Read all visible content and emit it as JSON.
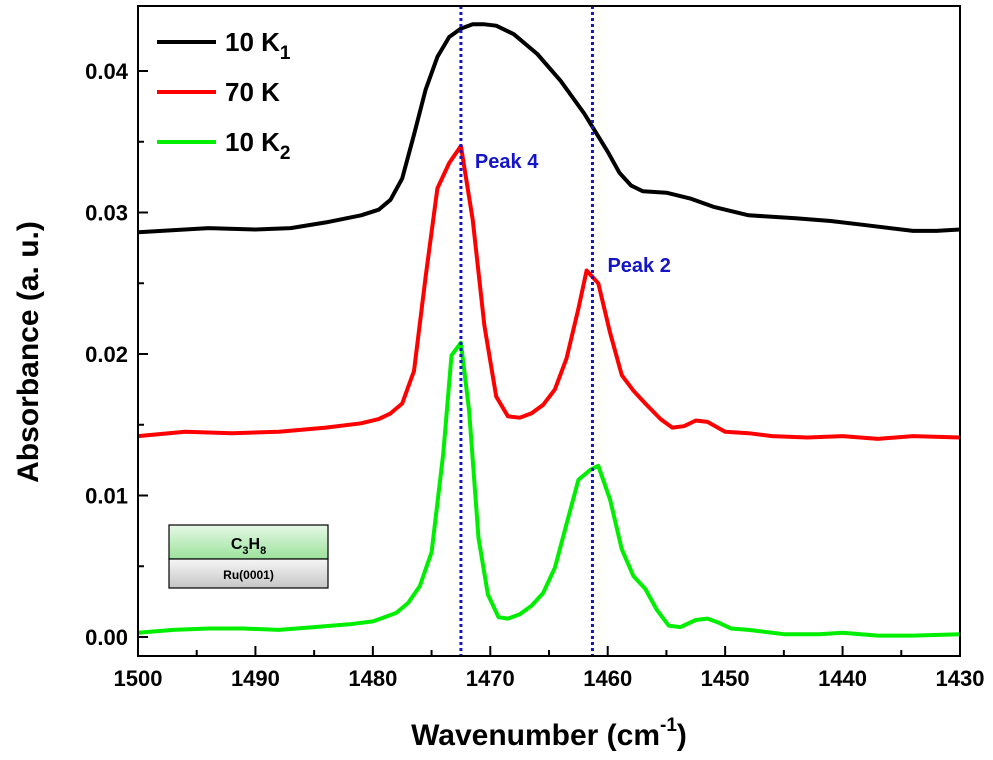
{
  "chart_data": {
    "type": "line",
    "xlabel": "Wavenumber (cm",
    "xlabel_sup": "-1",
    "xlabel_close": ")",
    "ylabel": "Absorbance (a. u.)",
    "xlim": [
      1500,
      1430
    ],
    "ylim": [
      -0.001,
      0.0445
    ],
    "x_ticks": [
      1500,
      1490,
      1480,
      1470,
      1460,
      1450,
      1440,
      1430
    ],
    "y_ticks": [
      0.0,
      0.01,
      0.02,
      0.03,
      0.04
    ],
    "x_tick_labels": [
      "1500",
      "1490",
      "1480",
      "1470",
      "1460",
      "1450",
      "1440",
      "1430"
    ],
    "y_tick_labels": [
      "0.00",
      "0.01",
      "0.02",
      "0.03",
      "0.04"
    ],
    "grid": false,
    "legend_position": "top-left",
    "series": [
      {
        "name": "10 K",
        "name_sub": "1",
        "color": "#000000",
        "x": [
          1500,
          1496,
          1494,
          1490,
          1487,
          1484,
          1481,
          1479.5,
          1478.5,
          1477.5,
          1476.5,
          1475.5,
          1474.5,
          1473.5,
          1472.5,
          1471.5,
          1470.5,
          1469.5,
          1468,
          1466,
          1464,
          1462,
          1460,
          1459,
          1458,
          1457,
          1455,
          1453,
          1451,
          1448,
          1444,
          1441,
          1438,
          1434,
          1432,
          1430
        ],
        "values": [
          0.0286,
          0.0288,
          0.0289,
          0.0288,
          0.0289,
          0.0293,
          0.0298,
          0.0302,
          0.0309,
          0.0324,
          0.0355,
          0.0387,
          0.041,
          0.0424,
          0.043,
          0.0433,
          0.0433,
          0.0432,
          0.0426,
          0.0412,
          0.0393,
          0.037,
          0.0343,
          0.0328,
          0.0319,
          0.0315,
          0.0314,
          0.031,
          0.0304,
          0.0298,
          0.0296,
          0.0294,
          0.0291,
          0.0287,
          0.0287,
          0.0288
        ]
      },
      {
        "name": "70 K",
        "color": "#ff0000",
        "x": [
          1500,
          1496,
          1492,
          1488,
          1484,
          1481,
          1479.5,
          1478.5,
          1477.5,
          1476.5,
          1475.5,
          1474.5,
          1473.5,
          1472.5,
          1471.5,
          1470.5,
          1469.5,
          1468.5,
          1467.5,
          1466.5,
          1465.5,
          1464.5,
          1463.5,
          1462.5,
          1461.8,
          1460.8,
          1459.8,
          1458.8,
          1457.8,
          1456.8,
          1455.5,
          1454.5,
          1453.5,
          1452.5,
          1451.5,
          1450,
          1448,
          1446,
          1443,
          1440,
          1437,
          1434,
          1430
        ],
        "values": [
          0.0142,
          0.0145,
          0.0144,
          0.0145,
          0.0148,
          0.0151,
          0.0154,
          0.0158,
          0.0165,
          0.0188,
          0.0255,
          0.0317,
          0.0335,
          0.0347,
          0.0295,
          0.022,
          0.017,
          0.0156,
          0.0155,
          0.0158,
          0.0164,
          0.0175,
          0.0197,
          0.0232,
          0.0259,
          0.025,
          0.0215,
          0.0185,
          0.0174,
          0.0165,
          0.0154,
          0.0148,
          0.0149,
          0.0153,
          0.0152,
          0.0145,
          0.0144,
          0.0142,
          0.0141,
          0.0142,
          0.014,
          0.0142,
          0.0141
        ]
      },
      {
        "name": "10 K",
        "name_sub": "2",
        "color": "#00ee00",
        "x": [
          1500,
          1497,
          1494,
          1491,
          1488,
          1485,
          1482,
          1480,
          1478,
          1477,
          1476,
          1475,
          1474,
          1473.3,
          1472.5,
          1471.8,
          1471,
          1470.2,
          1469.3,
          1468.5,
          1467.5,
          1466.5,
          1465.5,
          1464.5,
          1463.5,
          1462.5,
          1461.5,
          1460.8,
          1459.8,
          1458.8,
          1457.8,
          1456.8,
          1455.8,
          1454.8,
          1453.8,
          1452.5,
          1451.5,
          1450.5,
          1449.5,
          1448,
          1445,
          1442,
          1440,
          1437,
          1434,
          1430
        ],
        "values": [
          0.0003,
          0.0005,
          0.0006,
          0.0006,
          0.0005,
          0.0007,
          0.0009,
          0.0011,
          0.0017,
          0.0024,
          0.0036,
          0.006,
          0.013,
          0.0199,
          0.0208,
          0.016,
          0.007,
          0.003,
          0.0014,
          0.0013,
          0.0016,
          0.0022,
          0.0031,
          0.0049,
          0.008,
          0.0111,
          0.0118,
          0.0121,
          0.0097,
          0.0062,
          0.0043,
          0.0034,
          0.0019,
          0.0008,
          0.0007,
          0.0012,
          0.0013,
          0.001,
          0.0006,
          0.0005,
          0.0002,
          0.0002,
          0.0003,
          0.0001,
          0.0001,
          0.0002
        ]
      }
    ],
    "vlines": [
      {
        "x": 1472.5,
        "label": "Peak 4",
        "color": "#1414c8"
      },
      {
        "x": 1461.3,
        "label": "Peak 2",
        "color": "#1414c8"
      }
    ],
    "inset": {
      "top_label": "C",
      "top_sub1": "3",
      "top_mid": "H",
      "top_sub2": "8",
      "bottom_label": "Ru(0001)"
    }
  }
}
